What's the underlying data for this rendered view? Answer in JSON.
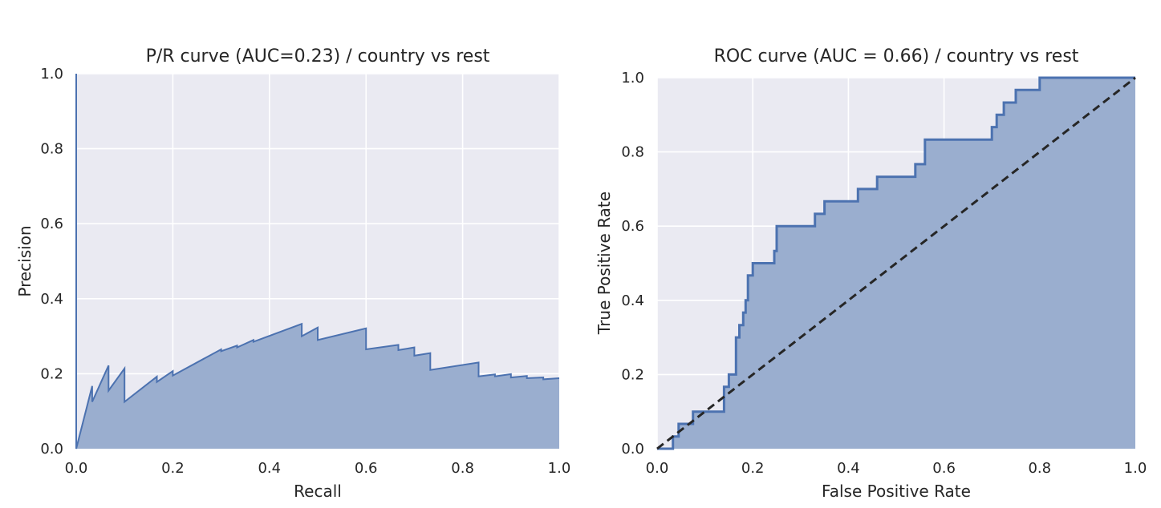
{
  "chart_data": [
    {
      "type": "area",
      "title": "P/R curve (AUC=0.23) / country vs rest",
      "xlabel": "Recall",
      "ylabel": "Precision",
      "xlim": [
        0.0,
        1.0
      ],
      "ylim": [
        0.0,
        1.0
      ],
      "xticks": [
        "0.0",
        "0.2",
        "0.4",
        "0.6",
        "0.8",
        "1.0"
      ],
      "yticks": [
        "0.0",
        "0.2",
        "0.4",
        "0.6",
        "0.8",
        "1.0"
      ],
      "grid": true,
      "color": "#4c72b0",
      "fill_color": "#9aaecf",
      "series": [
        {
          "x": [
            0.0,
            0.0,
            0.0,
            0.033,
            0.033,
            0.067,
            0.067,
            0.1,
            0.1,
            0.167,
            0.167,
            0.2,
            0.2,
            0.3,
            0.3,
            0.333,
            0.333,
            0.367,
            0.367,
            0.467,
            0.467,
            0.5,
            0.5,
            0.6,
            0.6,
            0.667,
            0.667,
            0.7,
            0.7,
            0.733,
            0.733,
            0.833,
            0.833,
            0.867,
            0.867,
            0.9,
            0.9,
            0.933,
            0.933,
            0.967,
            0.967,
            1.0
          ],
          "y": [
            1.0,
            1.0,
            0.0,
            0.167,
            0.125,
            0.222,
            0.155,
            0.214,
            0.125,
            0.192,
            0.178,
            0.207,
            0.195,
            0.265,
            0.26,
            0.275,
            0.27,
            0.29,
            0.285,
            0.333,
            0.3,
            0.323,
            0.29,
            0.321,
            0.265,
            0.277,
            0.263,
            0.27,
            0.248,
            0.255,
            0.21,
            0.23,
            0.193,
            0.198,
            0.193,
            0.199,
            0.19,
            0.194,
            0.188,
            0.19,
            0.185,
            0.188
          ]
        }
      ]
    },
    {
      "type": "area",
      "title": "ROC curve (AUC = 0.66) / country vs rest",
      "xlabel": "False Positive Rate",
      "ylabel": "True Positive Rate",
      "xlim": [
        0.0,
        1.0
      ],
      "ylim": [
        0.0,
        1.0
      ],
      "xticks": [
        "0.0",
        "0.2",
        "0.4",
        "0.6",
        "0.8",
        "1.0"
      ],
      "yticks": [
        "0.0",
        "0.2",
        "0.4",
        "0.6",
        "0.8",
        "1.0"
      ],
      "grid": true,
      "color": "#4c72b0",
      "fill_color": "#9aaecf",
      "diagonal_color": "#262626",
      "series": [
        {
          "x": [
            0.0,
            0.033,
            0.033,
            0.045,
            0.045,
            0.075,
            0.075,
            0.14,
            0.14,
            0.15,
            0.15,
            0.165,
            0.165,
            0.172,
            0.172,
            0.18,
            0.18,
            0.185,
            0.185,
            0.19,
            0.19,
            0.2,
            0.2,
            0.245,
            0.245,
            0.25,
            0.25,
            0.33,
            0.33,
            0.35,
            0.35,
            0.42,
            0.42,
            0.46,
            0.46,
            0.54,
            0.54,
            0.56,
            0.56,
            0.7,
            0.7,
            0.71,
            0.71,
            0.725,
            0.725,
            0.75,
            0.75,
            0.8,
            0.8,
            0.87,
            0.87,
            1.0
          ],
          "y": [
            0.0,
            0.0,
            0.033,
            0.033,
            0.067,
            0.067,
            0.1,
            0.1,
            0.167,
            0.167,
            0.2,
            0.2,
            0.3,
            0.3,
            0.333,
            0.333,
            0.367,
            0.367,
            0.4,
            0.4,
            0.467,
            0.467,
            0.5,
            0.5,
            0.533,
            0.533,
            0.6,
            0.6,
            0.633,
            0.633,
            0.667,
            0.667,
            0.7,
            0.7,
            0.733,
            0.733,
            0.767,
            0.767,
            0.833,
            0.833,
            0.867,
            0.867,
            0.9,
            0.9,
            0.933,
            0.933,
            0.967,
            0.967,
            1.0,
            1.0,
            1.0,
            1.0
          ]
        }
      ]
    }
  ]
}
